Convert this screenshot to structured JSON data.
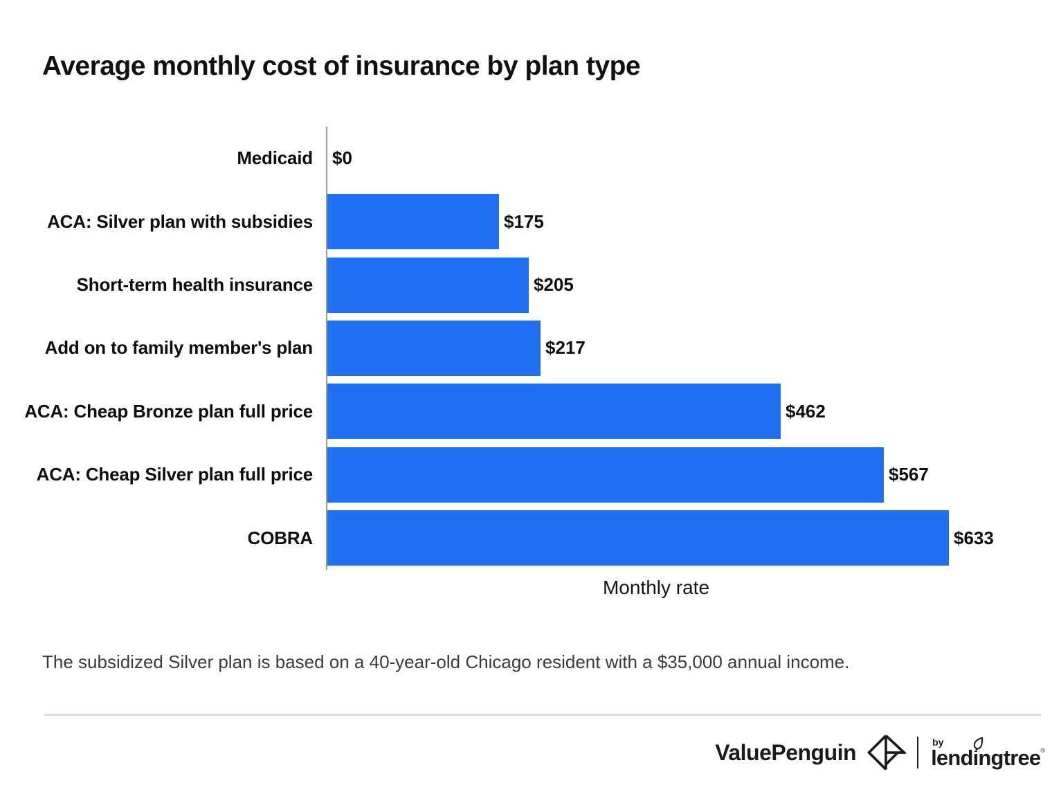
{
  "title": "Average monthly cost of insurance by plan type",
  "chart_data": {
    "type": "bar",
    "orientation": "horizontal",
    "title": "Average monthly cost of insurance by plan type",
    "categories": [
      "Medicaid",
      "ACA: Silver plan with subsidies",
      "Short-term health insurance",
      "Add on to family member's plan",
      "ACA: Cheap Bronze plan full price",
      "ACA: Cheap Silver plan full price",
      "COBRA"
    ],
    "values": [
      0,
      175,
      205,
      217,
      462,
      567,
      633
    ],
    "value_labels": [
      "$0",
      "$175",
      "$205",
      "$217",
      "$462",
      "$567",
      "$633"
    ],
    "xlabel": "Monthly rate",
    "ylabel": "",
    "xlim": [
      0,
      670
    ],
    "grid": false,
    "legend": false,
    "bar_color": "#2170f4",
    "axis_color": "#9b9b9b"
  },
  "footnote": "The subsidized Silver plan is based on a 40-year-old Chicago resident with a $35,000 annual income.",
  "footer": {
    "valuepenguin_label": "ValuePenguin",
    "by_label": "by",
    "lendingtree_label": "lendingtree",
    "trademark": "®",
    "icons": {
      "valuepenguin_mark": "origami-penguin-diamond",
      "lendingtree_leaf": "leaf"
    }
  }
}
